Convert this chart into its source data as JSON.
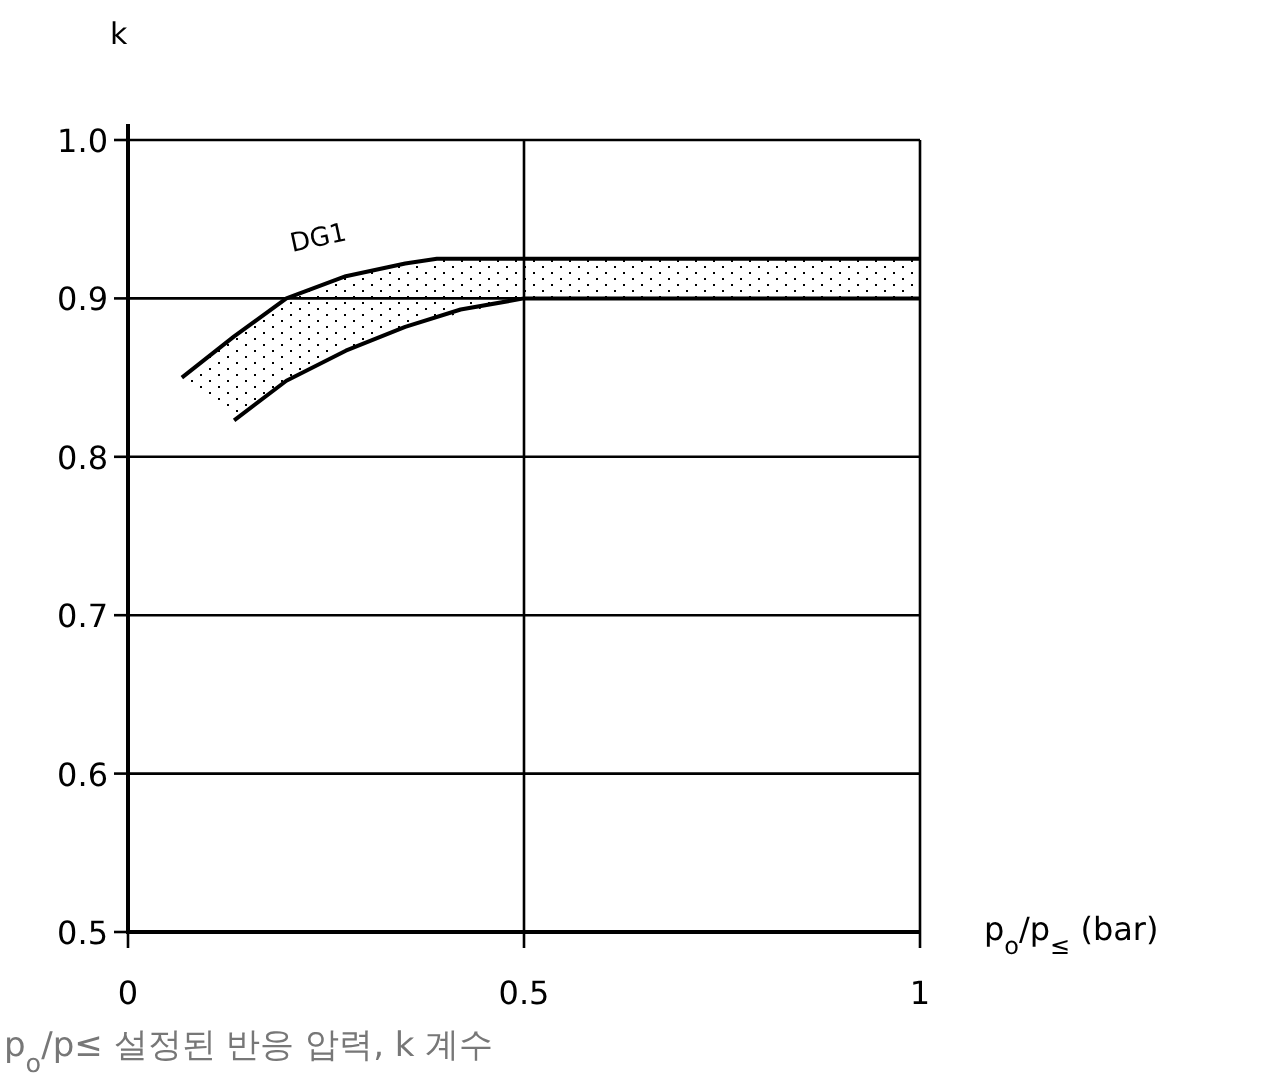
{
  "chart_data": {
    "type": "line",
    "xlabel": "p$_{o}$/p$_{≤}$ (bar)",
    "ylabel": "k",
    "xlim": [
      0,
      1
    ],
    "ylim": [
      0.5,
      1.0
    ],
    "xticks": [
      0,
      0.5,
      1
    ],
    "yticks": [
      0.5,
      0.6,
      0.7,
      0.8,
      0.9,
      {
        "value": 1.0,
        "label": "1.0"
      }
    ],
    "grid": true,
    "series": [
      {
        "color": "#000000",
        "x": [
          0.068,
          0.134,
          0.2,
          0.275,
          0.35,
          0.39,
          0.5,
          1
        ],
        "values": [
          0.85,
          0.876,
          0.9,
          0.914,
          0.922,
          0.925,
          0.925,
          0.925
        ],
        "upper": [
          0.85,
          0.876,
          0.9,
          0.914,
          0.922,
          0.925,
          0.925,
          0.925
        ],
        "lower": [
          0.85,
          0.823,
          0.848,
          0.867,
          0.882,
          0.887,
          0.9,
          0.9
        ]
      },
      {
        "color": "#000000",
        "x": [
          0.134,
          0.2,
          0.275,
          0.35,
          0.42,
          0.5,
          1
        ],
        "values": [
          0.823,
          0.848,
          0.867,
          0.882,
          0.893,
          0.9,
          0.9
        ]
      }
    ],
    "annotations": [
      "DG1",
      "p$_{o}$/p≤ 설정된 반응 압력, k 계수"
    ]
  }
}
